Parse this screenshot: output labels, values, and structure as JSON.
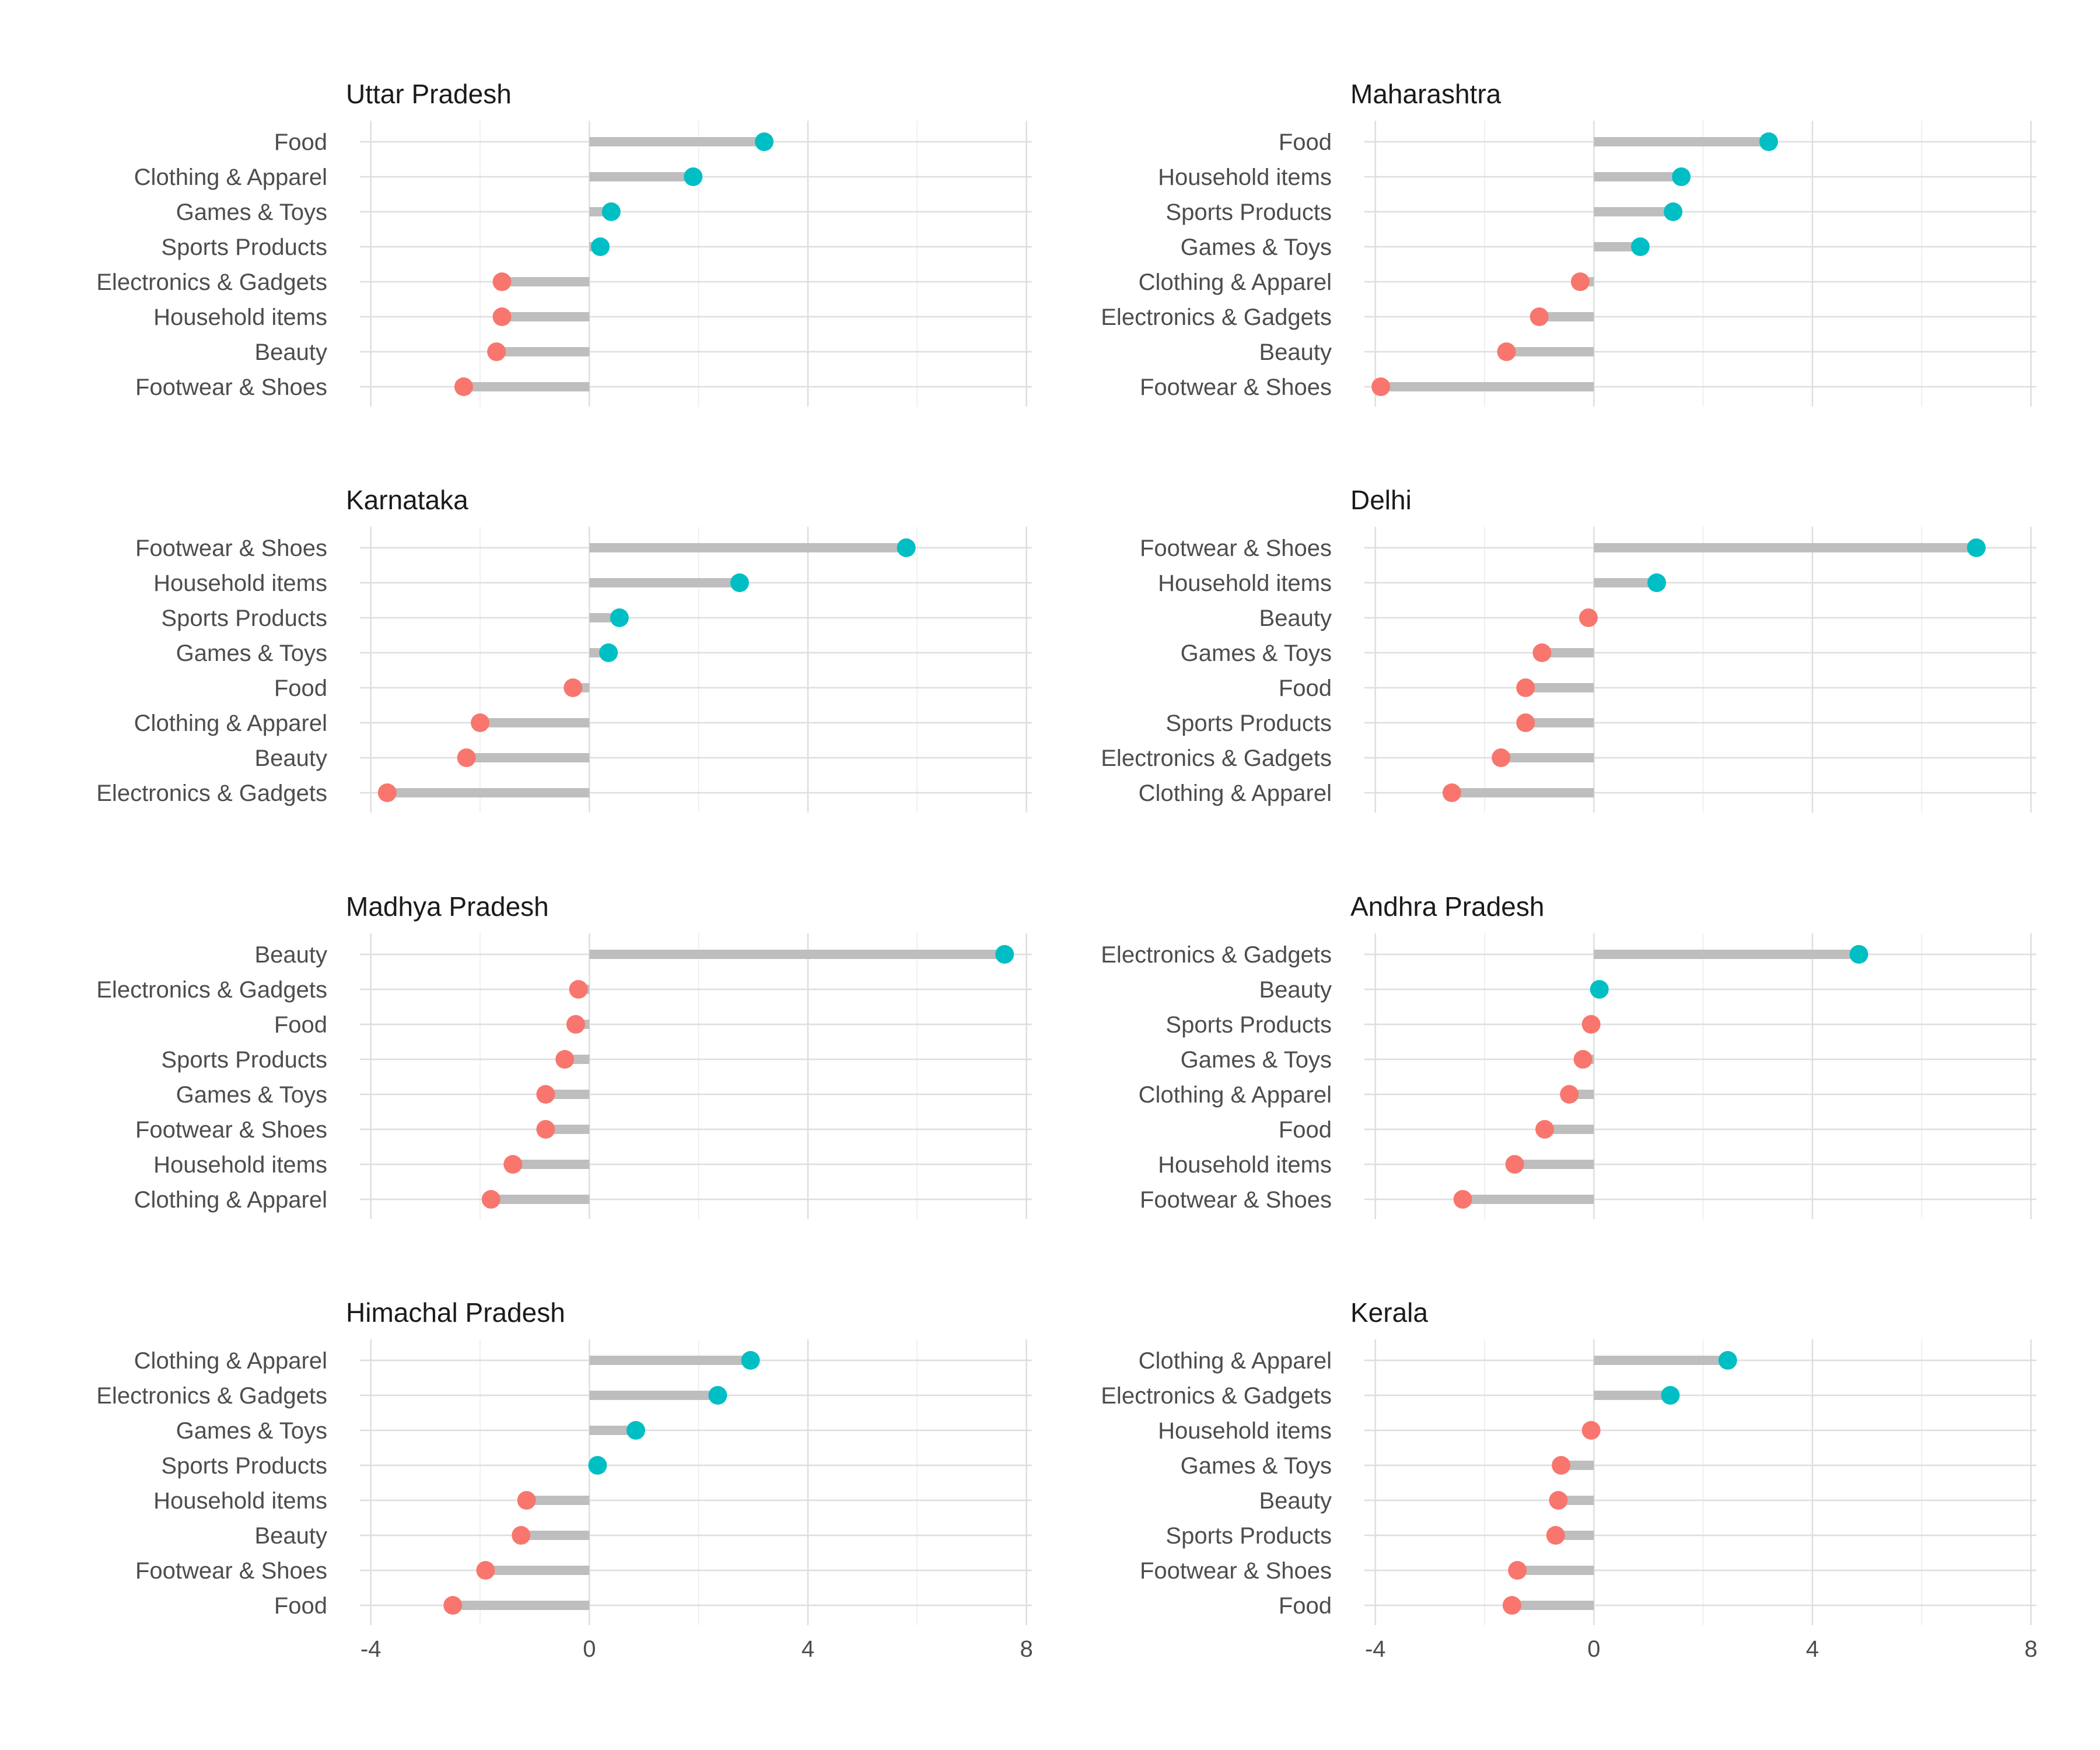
{
  "chart_data": {
    "type": "lollipop",
    "colors": {
      "positive": "#00BFC4",
      "negative": "#F8766D",
      "stem": "#BEBEBE"
    },
    "x_ticks": [
      -4,
      0,
      4,
      8
    ],
    "xlim": [
      -4.2,
      8.1
    ],
    "panels": [
      {
        "title": "Uttar Pradesh",
        "rows": [
          {
            "category": "Food",
            "value": 3.2
          },
          {
            "category": "Clothing & Apparel",
            "value": 1.9
          },
          {
            "category": "Games & Toys",
            "value": 0.4
          },
          {
            "category": "Sports Products",
            "value": 0.2
          },
          {
            "category": "Electronics & Gadgets",
            "value": -1.6
          },
          {
            "category": "Household items",
            "value": -1.6
          },
          {
            "category": "Beauty",
            "value": -1.7
          },
          {
            "category": "Footwear & Shoes",
            "value": -2.3
          }
        ]
      },
      {
        "title": "Maharashtra",
        "rows": [
          {
            "category": "Food",
            "value": 3.2
          },
          {
            "category": "Household items",
            "value": 1.6
          },
          {
            "category": "Sports Products",
            "value": 1.45
          },
          {
            "category": "Games & Toys",
            "value": 0.85
          },
          {
            "category": "Clothing & Apparel",
            "value": -0.25
          },
          {
            "category": "Electronics & Gadgets",
            "value": -1.0
          },
          {
            "category": "Beauty",
            "value": -1.6
          },
          {
            "category": "Footwear & Shoes",
            "value": -3.9
          }
        ]
      },
      {
        "title": "Karnataka",
        "rows": [
          {
            "category": "Footwear & Shoes",
            "value": 5.8
          },
          {
            "category": "Household items",
            "value": 2.75
          },
          {
            "category": "Sports Products",
            "value": 0.55
          },
          {
            "category": "Games & Toys",
            "value": 0.35
          },
          {
            "category": "Food",
            "value": -0.3
          },
          {
            "category": "Clothing & Apparel",
            "value": -2.0
          },
          {
            "category": "Beauty",
            "value": -2.25
          },
          {
            "category": "Electronics & Gadgets",
            "value": -3.7
          }
        ]
      },
      {
        "title": "Delhi",
        "rows": [
          {
            "category": "Footwear & Shoes",
            "value": 7.0
          },
          {
            "category": "Household items",
            "value": 1.15
          },
          {
            "category": "Beauty",
            "value": -0.1
          },
          {
            "category": "Games & Toys",
            "value": -0.95
          },
          {
            "category": "Food",
            "value": -1.25
          },
          {
            "category": "Sports Products",
            "value": -1.25
          },
          {
            "category": "Electronics & Gadgets",
            "value": -1.7
          },
          {
            "category": "Clothing & Apparel",
            "value": -2.6
          }
        ]
      },
      {
        "title": "Madhya Pradesh",
        "rows": [
          {
            "category": "Beauty",
            "value": 7.6
          },
          {
            "category": "Electronics & Gadgets",
            "value": -0.2
          },
          {
            "category": "Food",
            "value": -0.25
          },
          {
            "category": "Sports Products",
            "value": -0.45
          },
          {
            "category": "Games & Toys",
            "value": -0.8
          },
          {
            "category": "Footwear & Shoes",
            "value": -0.8
          },
          {
            "category": "Household items",
            "value": -1.4
          },
          {
            "category": "Clothing & Apparel",
            "value": -1.8
          }
        ]
      },
      {
        "title": "Andhra Pradesh",
        "rows": [
          {
            "category": "Electronics & Gadgets",
            "value": 4.85
          },
          {
            "category": "Beauty",
            "value": 0.1
          },
          {
            "category": "Sports Products",
            "value": -0.05
          },
          {
            "category": "Games & Toys",
            "value": -0.2
          },
          {
            "category": "Clothing & Apparel",
            "value": -0.45
          },
          {
            "category": "Food",
            "value": -0.9
          },
          {
            "category": "Household items",
            "value": -1.45
          },
          {
            "category": "Footwear & Shoes",
            "value": -2.4
          }
        ]
      },
      {
        "title": "Himachal Pradesh",
        "rows": [
          {
            "category": "Clothing & Apparel",
            "value": 2.95
          },
          {
            "category": "Electronics & Gadgets",
            "value": 2.35
          },
          {
            "category": "Games & Toys",
            "value": 0.85
          },
          {
            "category": "Sports Products",
            "value": 0.15
          },
          {
            "category": "Household items",
            "value": -1.15
          },
          {
            "category": "Beauty",
            "value": -1.25
          },
          {
            "category": "Footwear & Shoes",
            "value": -1.9
          },
          {
            "category": "Food",
            "value": -2.5
          }
        ]
      },
      {
        "title": "Kerala",
        "rows": [
          {
            "category": "Clothing & Apparel",
            "value": 2.45
          },
          {
            "category": "Electronics & Gadgets",
            "value": 1.4
          },
          {
            "category": "Household items",
            "value": -0.05
          },
          {
            "category": "Games & Toys",
            "value": -0.6
          },
          {
            "category": "Beauty",
            "value": -0.65
          },
          {
            "category": "Sports Products",
            "value": -0.7
          },
          {
            "category": "Footwear & Shoes",
            "value": -1.4
          },
          {
            "category": "Food",
            "value": -1.5
          }
        ]
      }
    ]
  }
}
